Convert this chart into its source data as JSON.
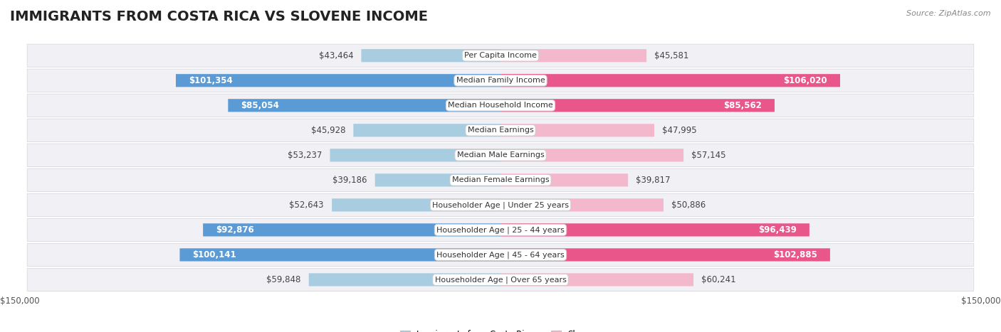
{
  "title": "IMMIGRANTS FROM COSTA RICA VS SLOVENE INCOME",
  "source": "Source: ZipAtlas.com",
  "categories": [
    "Per Capita Income",
    "Median Family Income",
    "Median Household Income",
    "Median Earnings",
    "Median Male Earnings",
    "Median Female Earnings",
    "Householder Age | Under 25 years",
    "Householder Age | 25 - 44 years",
    "Householder Age | 45 - 64 years",
    "Householder Age | Over 65 years"
  ],
  "costa_rica_values": [
    43464,
    101354,
    85054,
    45928,
    53237,
    39186,
    52643,
    92876,
    100141,
    59848
  ],
  "slovene_values": [
    45581,
    106020,
    85562,
    47995,
    57145,
    39817,
    50886,
    96439,
    102885,
    60241
  ],
  "costa_rica_labels": [
    "$43,464",
    "$101,354",
    "$85,054",
    "$45,928",
    "$53,237",
    "$39,186",
    "$52,643",
    "$92,876",
    "$100,141",
    "$59,848"
  ],
  "slovene_labels": [
    "$45,581",
    "$106,020",
    "$85,562",
    "$47,995",
    "$57,145",
    "$39,817",
    "$50,886",
    "$96,439",
    "$102,885",
    "$60,241"
  ],
  "costa_rica_color_light": "#a8cce0",
  "costa_rica_color_dark": "#5b9bd5",
  "slovene_color_light": "#f4b8cc",
  "slovene_color_dark": "#e8568a",
  "label_inside_threshold": 65000,
  "max_value": 150000,
  "legend_costa_rica": "Immigrants from Costa Rica",
  "legend_slovene": "Slovene",
  "background_color": "#ffffff",
  "row_color": "#f0f0f5",
  "row_border_color": "#d8d8e0",
  "title_fontsize": 14,
  "label_fontsize": 8.5,
  "category_fontsize": 8,
  "axis_fontsize": 8.5
}
